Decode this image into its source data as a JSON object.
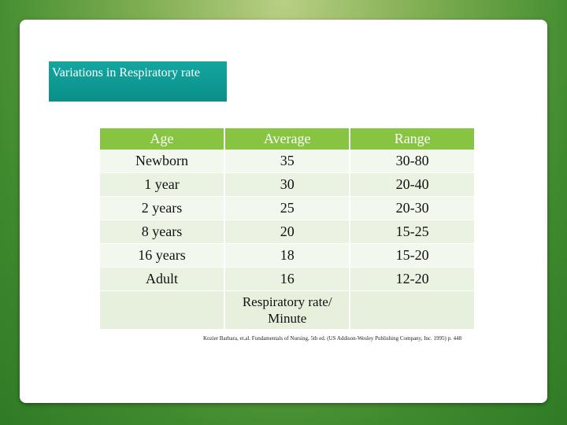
{
  "title": "Variations in Respiratory rate",
  "table": {
    "header": [
      "Age",
      "Average",
      "Range"
    ],
    "rows": [
      [
        "Newborn",
        "35",
        "30-80"
      ],
      [
        "1 year",
        "30",
        "20-40"
      ],
      [
        "2 years",
        "25",
        "20-30"
      ],
      [
        "8 years",
        "20",
        "15-25"
      ],
      [
        "16 years",
        "18",
        "15-20"
      ],
      [
        "Adult",
        "16",
        "12-20"
      ]
    ],
    "unit_label": "Respiratory rate/ Minute"
  },
  "citation": "Kozier Barbara, et.al. Fundamentals of Nursing, 5th ed. (US Addison-Wesley Publishing Company, Inc. 1995) p. 448"
}
